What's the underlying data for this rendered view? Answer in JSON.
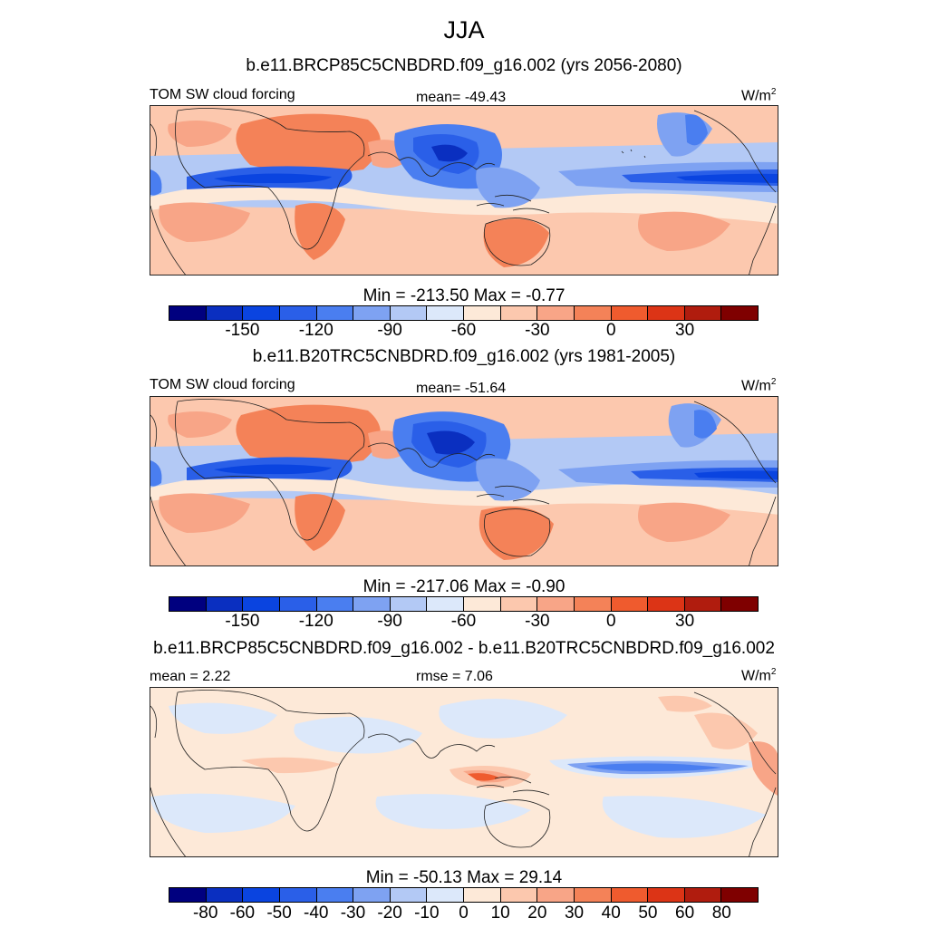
{
  "title": "JJA",
  "panels": [
    {
      "subtitle": "b.e11.BRCP85C5CNBDRD.f09_g16.002 (yrs 2056-2080)",
      "left_label": "TOM SW cloud forcing",
      "center_label": "mean= -49.43",
      "units": "W/m",
      "units_sup": "2",
      "minmax": "Min = -213.50 Max =  -0.77",
      "colorbar": {
        "colors": [
          "#00007f",
          "#0a2fc0",
          "#0a44e0",
          "#2a5fe8",
          "#4a7ef0",
          "#7ea2f2",
          "#b3c9f5",
          "#dce8fa",
          "#fde9d8",
          "#fcc8ae",
          "#f8a587",
          "#f48258",
          "#ef5b2e",
          "#dc3416",
          "#b01c0e",
          "#7f0000"
        ],
        "ticks": [
          "-150",
          "-120",
          "-90",
          "-60",
          "-30",
          "0",
          "30"
        ]
      }
    },
    {
      "subtitle": "b.e11.B20TRC5CNBDRD.f09_g16.002 (yrs 1981-2005)",
      "left_label": "TOM SW cloud forcing",
      "center_label": "mean= -51.64",
      "units": "W/m",
      "units_sup": "2",
      "minmax": "Min = -217.06 Max =  -0.90",
      "colorbar": {
        "colors": [
          "#00007f",
          "#0a2fc0",
          "#0a44e0",
          "#2a5fe8",
          "#4a7ef0",
          "#7ea2f2",
          "#b3c9f5",
          "#dce8fa",
          "#fde9d8",
          "#fcc8ae",
          "#f8a587",
          "#f48258",
          "#ef5b2e",
          "#dc3416",
          "#b01c0e",
          "#7f0000"
        ],
        "ticks": [
          "-150",
          "-120",
          "-90",
          "-60",
          "-30",
          "0",
          "30"
        ]
      }
    },
    {
      "subtitle": "b.e11.BRCP85C5CNBDRD.f09_g16.002 - b.e11.B20TRC5CNBDRD.f09_g16.002",
      "left_label": "mean =   2.22",
      "center_label": "rmse =   7.06",
      "units": "W/m",
      "units_sup": "2",
      "minmax": "Min = -50.13 Max =  29.14",
      "colorbar": {
        "colors": [
          "#00007f",
          "#0a2fc0",
          "#0a44e0",
          "#2a5fe8",
          "#4a7ef0",
          "#7ea2f2",
          "#b3c9f5",
          "#dce8fa",
          "#fde9d8",
          "#fcc8ae",
          "#f8a587",
          "#f48258",
          "#ef5b2e",
          "#dc3416",
          "#b01c0e",
          "#7f0000"
        ],
        "ticks": [
          "-80",
          "-60",
          "-50",
          "-40",
          "-30",
          "-20",
          "-10",
          "0",
          "10",
          "20",
          "30",
          "40",
          "50",
          "60",
          "80"
        ]
      }
    }
  ]
}
